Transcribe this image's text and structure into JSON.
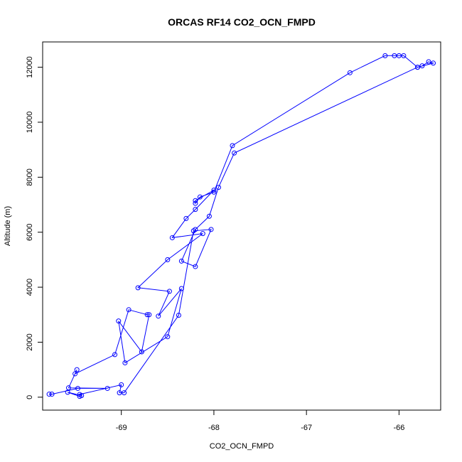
{
  "chart_data": {
    "type": "scatter",
    "title": "ORCAS RF14 CO2_OCN_FMPD",
    "xlabel": "CO2_OCN_FMPD",
    "ylabel": "Altitude (m)",
    "xlim": [
      -69.85,
      -65.55
    ],
    "ylim": [
      -470,
      12920
    ],
    "xticks": [
      -69,
      -68,
      -67,
      -66
    ],
    "yticks": [
      0,
      2000,
      4000,
      6000,
      8000,
      10000,
      12000
    ],
    "grid": false,
    "series": [
      {
        "color": "#0000ff",
        "marker": "open-circle",
        "line": true,
        "points": [
          [
            -69.78,
            110
          ],
          [
            -69.75,
            110
          ],
          [
            -69.47,
            320
          ],
          [
            -69.15,
            320
          ],
          [
            -69.57,
            340
          ],
          [
            -69.48,
            1000
          ],
          [
            -69.5,
            850
          ],
          [
            -69.07,
            1550
          ],
          [
            -68.92,
            3180
          ],
          [
            -68.72,
            3000
          ],
          [
            -68.7,
            3000
          ],
          [
            -68.78,
            1650
          ],
          [
            -69.03,
            2770
          ],
          [
            -68.96,
            1250
          ],
          [
            -68.5,
            2200
          ],
          [
            -68.35,
            3950
          ],
          [
            -68.6,
            2950
          ],
          [
            -68.48,
            3850
          ],
          [
            -68.82,
            3980
          ],
          [
            -68.5,
            5000
          ],
          [
            -68.12,
            5950
          ],
          [
            -68.45,
            5800
          ],
          [
            -68.3,
            6500
          ],
          [
            -68.2,
            6830
          ],
          [
            -68.0,
            7530
          ],
          [
            -68.2,
            7150
          ],
          [
            -68.2,
            7050
          ],
          [
            -68.15,
            7280
          ],
          [
            -68.0,
            7460
          ],
          [
            -67.8,
            9150
          ],
          [
            -66.53,
            11800
          ],
          [
            -66.15,
            12420
          ],
          [
            -66.05,
            12420
          ],
          [
            -66.0,
            12420
          ],
          [
            -65.95,
            12420
          ],
          [
            -65.8,
            12000
          ],
          [
            -65.75,
            12050
          ],
          [
            -65.68,
            12200
          ],
          [
            -65.63,
            12150
          ],
          [
            -65.8,
            12000
          ],
          [
            -67.78,
            8880
          ],
          [
            -67.95,
            7630
          ],
          [
            -68.05,
            6580
          ],
          [
            -68.2,
            6100
          ],
          [
            -68.35,
            4950
          ],
          [
            -68.2,
            4750
          ],
          [
            -68.03,
            6100
          ],
          [
            -68.22,
            6050
          ],
          [
            -68.38,
            2980
          ],
          [
            -68.97,
            160
          ],
          [
            -69.02,
            160
          ],
          [
            -69.0,
            450
          ],
          [
            -69.45,
            100
          ],
          [
            -69.43,
            60
          ],
          [
            -69.58,
            180
          ],
          [
            -69.45,
            30
          ]
        ]
      }
    ]
  }
}
